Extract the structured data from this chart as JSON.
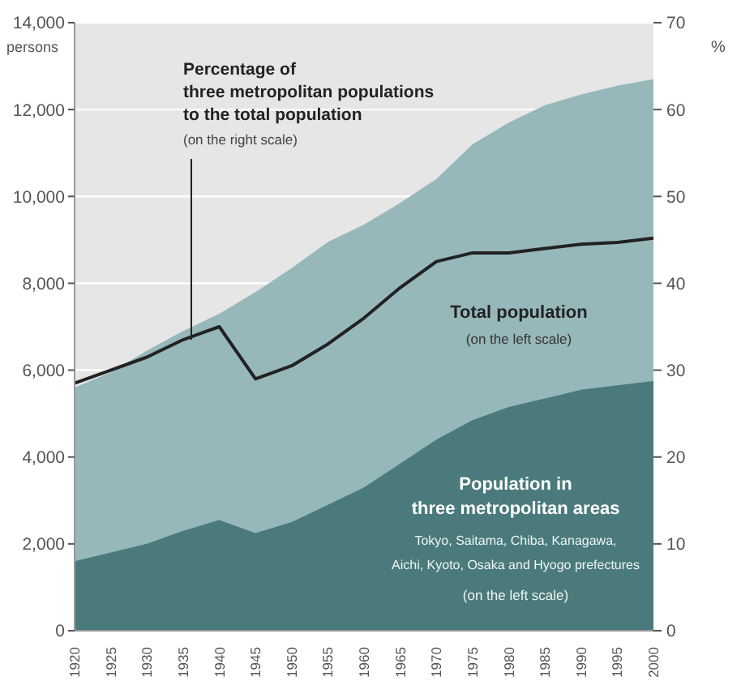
{
  "chart_data": {
    "type": "area",
    "categories": [
      "1920",
      "1925",
      "1930",
      "1935",
      "1940",
      "1945",
      "1950",
      "1955",
      "1960",
      "1965",
      "1970",
      "1975",
      "1980",
      "1985",
      "1990",
      "1995",
      "2000"
    ],
    "series": [
      {
        "color": "#97b8ba",
        "values": [
          5600,
          5950,
          6450,
          6900,
          7300,
          7800,
          8350,
          8950,
          9350,
          9850,
          10400,
          11200,
          11700,
          12100,
          12350,
          12550,
          12700
        ]
      },
      {
        "color": "#4a7a7b",
        "values": [
          1600,
          1800,
          2000,
          2300,
          2550,
          2250,
          2500,
          2900,
          3300,
          3850,
          4400,
          4850,
          5150,
          5350,
          5550,
          5650,
          5750
        ]
      },
      {
        "type": "line",
        "axis": "y2",
        "color": "#222222",
        "values": [
          28.5,
          30,
          31.5,
          33.5,
          35,
          29,
          30.5,
          33,
          36,
          39.5,
          42.5,
          43.5,
          43.5,
          44,
          44.5,
          44.7,
          45.2
        ]
      }
    ],
    "ylabel": "persons",
    "y2label": "%",
    "ylim": [
      0,
      14000
    ],
    "yticks": [
      0,
      {
        "value": 2000,
        "label": "2,000"
      },
      {
        "value": 4000,
        "label": "4,000"
      },
      {
        "value": 6000,
        "label": "6,000"
      },
      {
        "value": 8000,
        "label": "8,000"
      },
      {
        "value": 10000,
        "label": "10,000"
      },
      {
        "value": 12000,
        "label": "12,000"
      },
      {
        "value": 14000,
        "label": "14,000"
      }
    ],
    "y2lim": [
      0,
      70
    ],
    "y2ticks": [
      0,
      10,
      20,
      30,
      40,
      50,
      60,
      70
    ],
    "grid": "y",
    "legend": false,
    "annotations": [
      "Percentage of\nthree metropolitan populations\nto the total population",
      {
        "text": "(on the right scale)",
        "x": "1935",
        "y": 6700
      },
      "Total population",
      "(on the left scale)",
      "Population in\nthree metropolitan areas",
      "Tokyo, Saitama, Chiba, Kanagawa,\nAichi, Kyoto, Osaka and Hyogo prefectures",
      "(on the left scale)"
    ]
  }
}
